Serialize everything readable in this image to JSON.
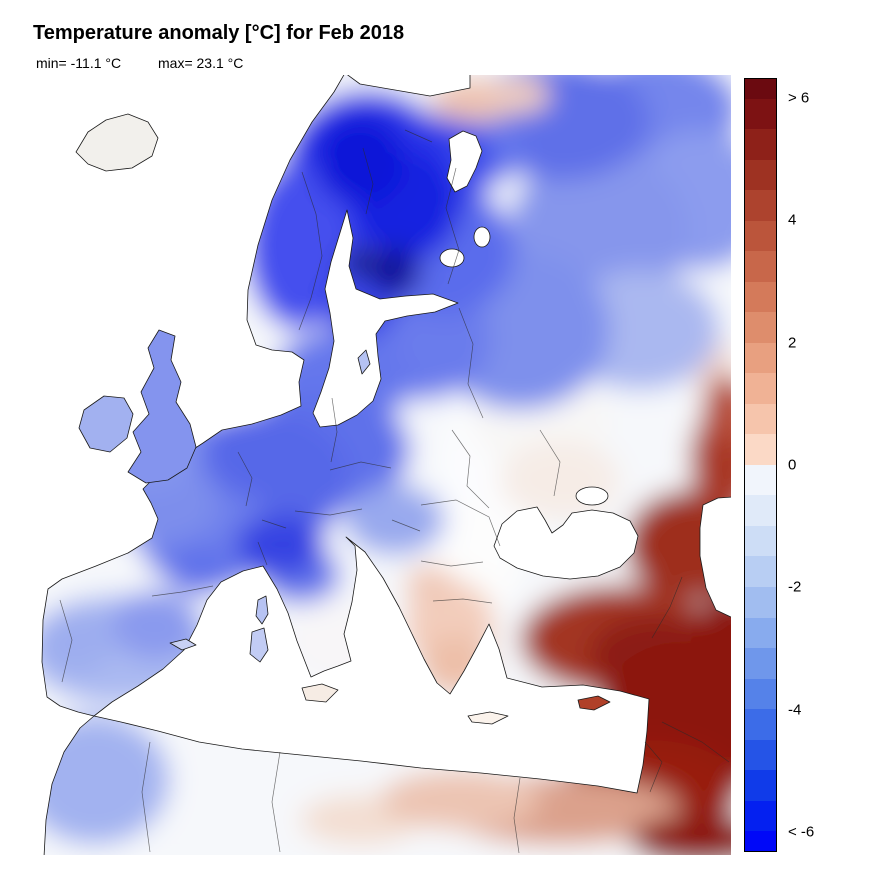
{
  "title": "Temperature anomaly [°C] for Feb 2018",
  "stats": {
    "min": "min= -11.1 °C",
    "max": "max= 23.1 °C"
  },
  "colorbar": {
    "unit": "°C",
    "tick_labels": [
      "> 6",
      "4",
      "2",
      "0",
      "-2",
      "-4",
      "< -6"
    ],
    "tick_values": [
      6,
      4,
      2,
      0,
      -2,
      -4,
      -6
    ],
    "colors": [
      "#6B0A10",
      "#7D1213",
      "#8E2119",
      "#9E3222",
      "#AD432E",
      "#BB553B",
      "#C8674A",
      "#D47A5A",
      "#DE8D6C",
      "#E8A080",
      "#F0B295",
      "#F6C5AC",
      "#FBD9C6",
      "#F1F5FC",
      "#E0EAF9",
      "#CDDDF6",
      "#B8CEF3",
      "#A1BDF0",
      "#88ABEE",
      "#6F97EB",
      "#5582E9",
      "#3C6CE8",
      "#2554E7",
      "#103BE9",
      "#0420F0",
      "#0008F8"
    ],
    "extreme_high_color": "#6B0A10",
    "extreme_low_color": "#0008F8"
  },
  "map": {
    "sea_color": "#FFFFFF",
    "coastline_color": "#1A1A1A",
    "cold_anomaly_color": "#1A2AE0",
    "warm_anomaly_color": "#8C1408"
  }
}
